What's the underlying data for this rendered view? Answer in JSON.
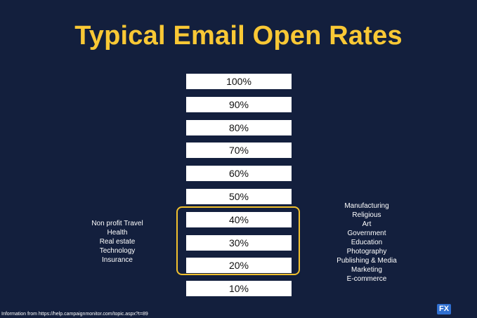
{
  "title": "Typical Email Open Rates",
  "chart_data": {
    "type": "bar",
    "title": "Typical Email Open Rates",
    "categories": [
      "100%",
      "90%",
      "80%",
      "70%",
      "60%",
      "50%",
      "40%",
      "30%",
      "20%",
      "10%"
    ],
    "values": [
      100,
      90,
      80,
      70,
      60,
      50,
      40,
      30,
      20,
      10
    ],
    "highlighted_range": [
      "40%",
      "20%"
    ],
    "highlight_color": "#f2c12e"
  },
  "left_group": [
    "Non profit Travel",
    "Health",
    "Real estate",
    "Technology",
    "Insurance"
  ],
  "right_group": [
    "Manufacturing",
    "Religious",
    "Art",
    "Government",
    "Education",
    "Photography",
    "Publishing & Media",
    "Marketing",
    "E-commerce"
  ],
  "source": "Information from https://help.campaignmonitor.com/topic.aspx?t=89",
  "logo": {
    "text": "FX"
  },
  "colors": {
    "background": "#131f3d",
    "title": "#f9c835",
    "bar": "#ffffff"
  }
}
